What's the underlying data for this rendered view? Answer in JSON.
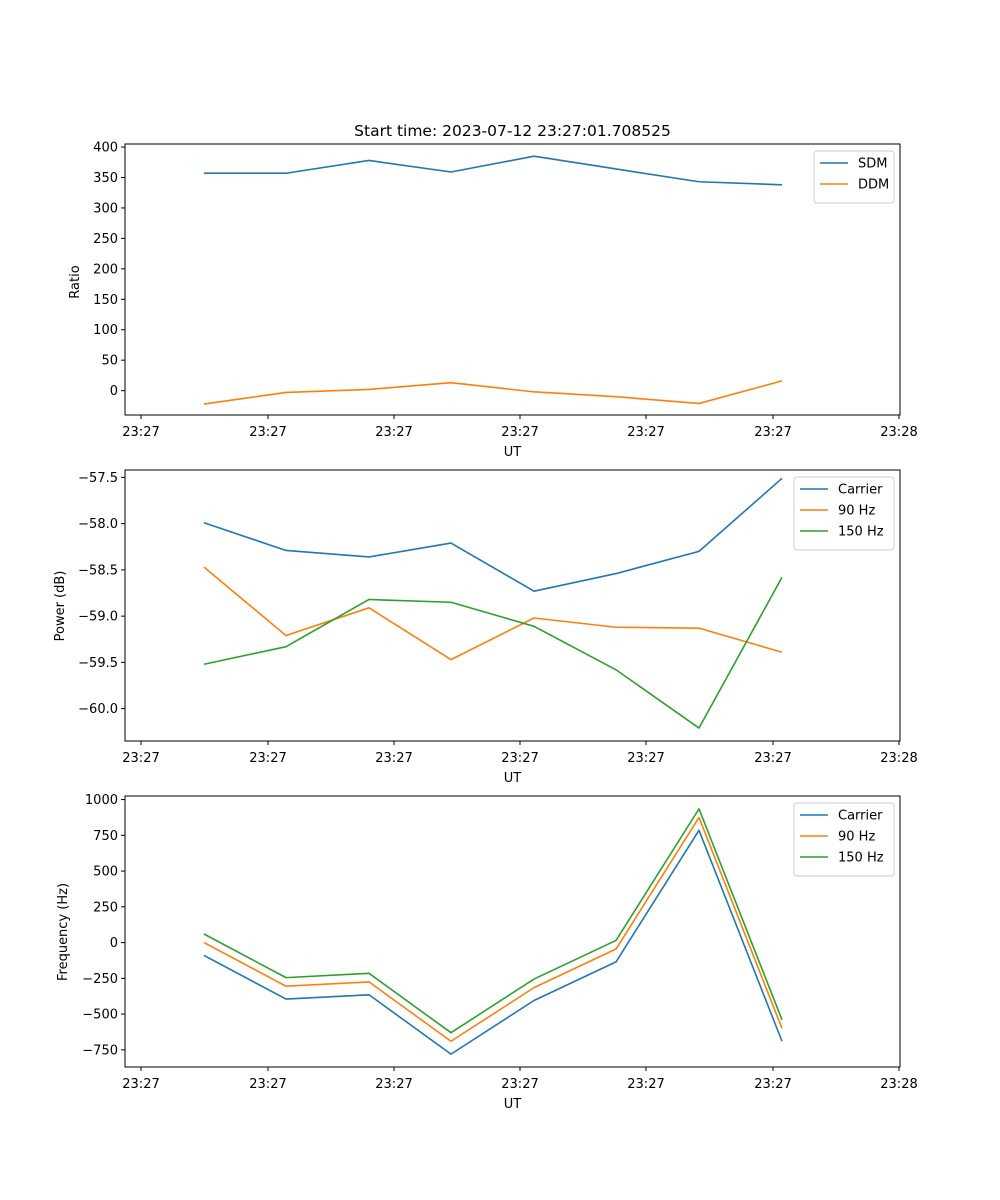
{
  "chart_data": [
    {
      "type": "line",
      "title": "Start time: 2023-07-12 23:27:01.708525",
      "xlabel": "UT",
      "ylabel": "Ratio",
      "x_tick_labels": [
        "23:27",
        "23:27",
        "23:27",
        "23:27",
        "23:27",
        "23:27",
        "23:28"
      ],
      "ylim": [
        -40,
        405
      ],
      "y_ticks": [
        0,
        50,
        100,
        150,
        200,
        250,
        300,
        350,
        400
      ],
      "y_tick_labels": [
        "0",
        "50",
        "100",
        "150",
        "200",
        "250",
        "300",
        "350",
        "400"
      ],
      "legend": "top-right",
      "series": [
        {
          "name": "SDM",
          "color": "#1f77b4",
          "values": [
            357,
            357,
            378,
            359,
            385,
            364,
            343,
            338
          ]
        },
        {
          "name": "DDM",
          "color": "#ff7f0e",
          "values": [
            -22,
            -3,
            2,
            13,
            -2,
            -10,
            -21,
            16
          ]
        }
      ]
    },
    {
      "type": "line",
      "title": "",
      "xlabel": "UT",
      "ylabel": "Power (dB)",
      "x_tick_labels": [
        "23:27",
        "23:27",
        "23:27",
        "23:27",
        "23:27",
        "23:27",
        "23:28"
      ],
      "ylim": [
        -60.35,
        -57.42
      ],
      "y_ticks": [
        -60.0,
        -59.5,
        -59.0,
        -58.5,
        -58.0,
        -57.5
      ],
      "y_tick_labels": [
        "−60.0",
        "−59.5",
        "−59.0",
        "−58.5",
        "−58.0",
        "−57.5"
      ],
      "legend": "top-right",
      "series": [
        {
          "name": "Carrier",
          "color": "#1f77b4",
          "values": [
            -57.99,
            -58.29,
            -58.36,
            -58.21,
            -58.73,
            -58.54,
            -58.3,
            -57.51
          ]
        },
        {
          "name": "90 Hz",
          "color": "#ff7f0e",
          "values": [
            -58.47,
            -59.21,
            -58.91,
            -59.47,
            -59.02,
            -59.12,
            -59.13,
            -59.39
          ]
        },
        {
          "name": "150 Hz",
          "color": "#2ca02c",
          "values": [
            -59.52,
            -59.33,
            -58.82,
            -58.85,
            -59.11,
            -59.58,
            -60.21,
            -58.58
          ]
        }
      ]
    },
    {
      "type": "line",
      "title": "",
      "xlabel": "UT",
      "ylabel": "Frequency (Hz)",
      "x_tick_labels": [
        "23:27",
        "23:27",
        "23:27",
        "23:27",
        "23:27",
        "23:27",
        "23:28"
      ],
      "ylim": [
        -870,
        1025
      ],
      "y_ticks": [
        -750,
        -500,
        -250,
        0,
        250,
        500,
        750,
        1000
      ],
      "y_tick_labels": [
        "−750",
        "−500",
        "−250",
        "0",
        "250",
        "500",
        "750",
        "1000"
      ],
      "legend": "top-right",
      "series": [
        {
          "name": "Carrier",
          "color": "#1f77b4",
          "values": [
            -90,
            -395,
            -365,
            -780,
            -405,
            -135,
            785,
            -690
          ]
        },
        {
          "name": "90 Hz",
          "color": "#ff7f0e",
          "values": [
            0,
            -305,
            -275,
            -690,
            -315,
            -45,
            875,
            -600
          ]
        },
        {
          "name": "150 Hz",
          "color": "#2ca02c",
          "values": [
            60,
            -245,
            -215,
            -630,
            -255,
            15,
            935,
            -540
          ]
        }
      ]
    }
  ]
}
